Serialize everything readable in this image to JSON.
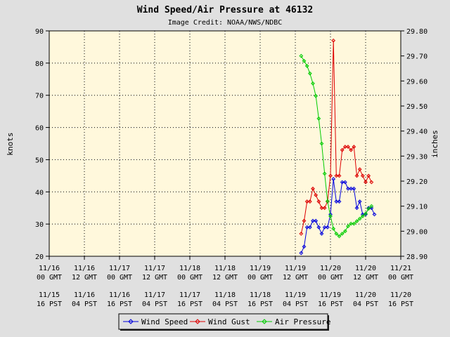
{
  "chart_data": {
    "type": "line",
    "title": "Wind Speed/Air Pressure at 46132",
    "subtitle": "Image Credit: NOAA/NWS/NDBC",
    "ylabel_left": "knots",
    "ylabel_right": "inches",
    "ylim_left": [
      20,
      90
    ],
    "ylim_right": [
      28.9,
      29.8
    ],
    "left_ticks": [
      "20",
      "30",
      "40",
      "50",
      "60",
      "70",
      "80",
      "90"
    ],
    "right_ticks": [
      "28.90",
      "29.00",
      "29.10",
      "29.20",
      "29.30",
      "29.40",
      "29.50",
      "29.60",
      "29.70",
      "29.80"
    ],
    "x_ticks_gmt": [
      [
        "11/16",
        "00 GMT"
      ],
      [
        "11/16",
        "12 GMT"
      ],
      [
        "11/17",
        "00 GMT"
      ],
      [
        "11/17",
        "12 GMT"
      ],
      [
        "11/18",
        "00 GMT"
      ],
      [
        "11/18",
        "12 GMT"
      ],
      [
        "11/19",
        "00 GMT"
      ],
      [
        "11/19",
        "12 GMT"
      ],
      [
        "11/20",
        "00 GMT"
      ],
      [
        "11/20",
        "12 GMT"
      ],
      [
        "11/21",
        "00 GMT"
      ]
    ],
    "x_ticks_pst": [
      [
        "11/15",
        "16 PST"
      ],
      [
        "11/16",
        "04 PST"
      ],
      [
        "11/16",
        "16 PST"
      ],
      [
        "11/17",
        "04 PST"
      ],
      [
        "11/17",
        "16 PST"
      ],
      [
        "11/18",
        "04 PST"
      ],
      [
        "11/18",
        "16 PST"
      ],
      [
        "11/19",
        "04 PST"
      ],
      [
        "11/19",
        "16 PST"
      ],
      [
        "11/20",
        "04 PST"
      ],
      [
        "11/20",
        "16 PST"
      ]
    ],
    "x_unit": "hours since 11/16 00 GMT",
    "grid": true,
    "legend_position": "bottom",
    "series": [
      {
        "name": "Wind Speed",
        "axis": "left",
        "color": "#0000dd",
        "x": [
          86,
          87,
          88,
          89,
          90,
          91,
          92,
          93,
          94,
          95,
          96,
          97,
          98,
          99,
          100,
          101,
          102,
          103,
          104,
          105,
          106,
          107,
          108,
          109,
          110,
          111,
          112,
          113
        ],
        "y": [
          21,
          23,
          29,
          29,
          31,
          31,
          29,
          27,
          29,
          29,
          33,
          44,
          37,
          37,
          43,
          43,
          41,
          41,
          41,
          35,
          37,
          33,
          33,
          35,
          35,
          33,
          null,
          null
        ]
      },
      {
        "name": "Wind Gust",
        "axis": "left",
        "color": "#dd0000",
        "x": [
          86,
          87,
          88,
          89,
          90,
          91,
          92,
          93,
          94,
          95,
          96,
          97,
          98,
          99,
          100,
          101,
          102,
          103,
          104,
          105,
          106,
          107,
          108,
          109,
          110
        ],
        "y": [
          27,
          31,
          37,
          37,
          41,
          39,
          37,
          35,
          35,
          37,
          45,
          87,
          45,
          45,
          53,
          54,
          54,
          53,
          54,
          45,
          47,
          45,
          43,
          45,
          43
        ]
      },
      {
        "name": "Air Pressure",
        "axis": "right",
        "color": "#00cc00",
        "x": [
          86,
          87,
          88,
          89,
          90,
          91,
          92,
          93,
          94,
          95,
          96,
          97,
          98,
          99,
          100,
          101,
          102,
          103,
          104,
          105,
          106,
          107,
          108,
          109,
          110
        ],
        "y": [
          29.7,
          29.68,
          29.66,
          29.63,
          29.59,
          29.54,
          29.45,
          29.35,
          29.23,
          29.12,
          29.06,
          29.01,
          28.99,
          28.98,
          28.99,
          29.0,
          29.02,
          29.03,
          29.03,
          29.04,
          29.05,
          29.06,
          29.07,
          29.09,
          29.1
        ]
      }
    ]
  }
}
